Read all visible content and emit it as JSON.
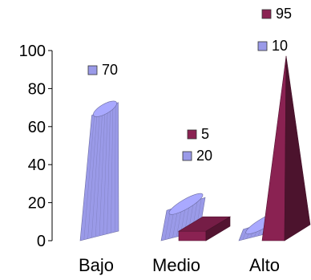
{
  "chart_data": {
    "type": "bar",
    "categories": [
      "Bajo",
      "Medio",
      "Alto"
    ],
    "series": [
      {
        "values": [
          70,
          20,
          10
        ],
        "color": "#9a9ae8",
        "shape": "cone-cylinder"
      },
      {
        "values": [
          0,
          5,
          95
        ],
        "color": "#8a2252",
        "shape": "cuboid-pyramid"
      }
    ],
    "data_labels": [
      {
        "text": "70",
        "category": "Bajo",
        "series": 0
      },
      {
        "text": "20",
        "category": "Medio",
        "series": 0
      },
      {
        "text": "5",
        "category": "Medio",
        "series": 1
      },
      {
        "text": "10",
        "category": "Alto",
        "series": 0
      },
      {
        "text": "95",
        "category": "Alto",
        "series": 1
      }
    ],
    "yticks": [
      "0",
      "20",
      "40",
      "60",
      "80",
      "100"
    ],
    "ylim": [
      0,
      100
    ],
    "title": "",
    "xlabel": "",
    "ylabel": "",
    "grid": false,
    "legend": "none",
    "is_3d": true
  }
}
